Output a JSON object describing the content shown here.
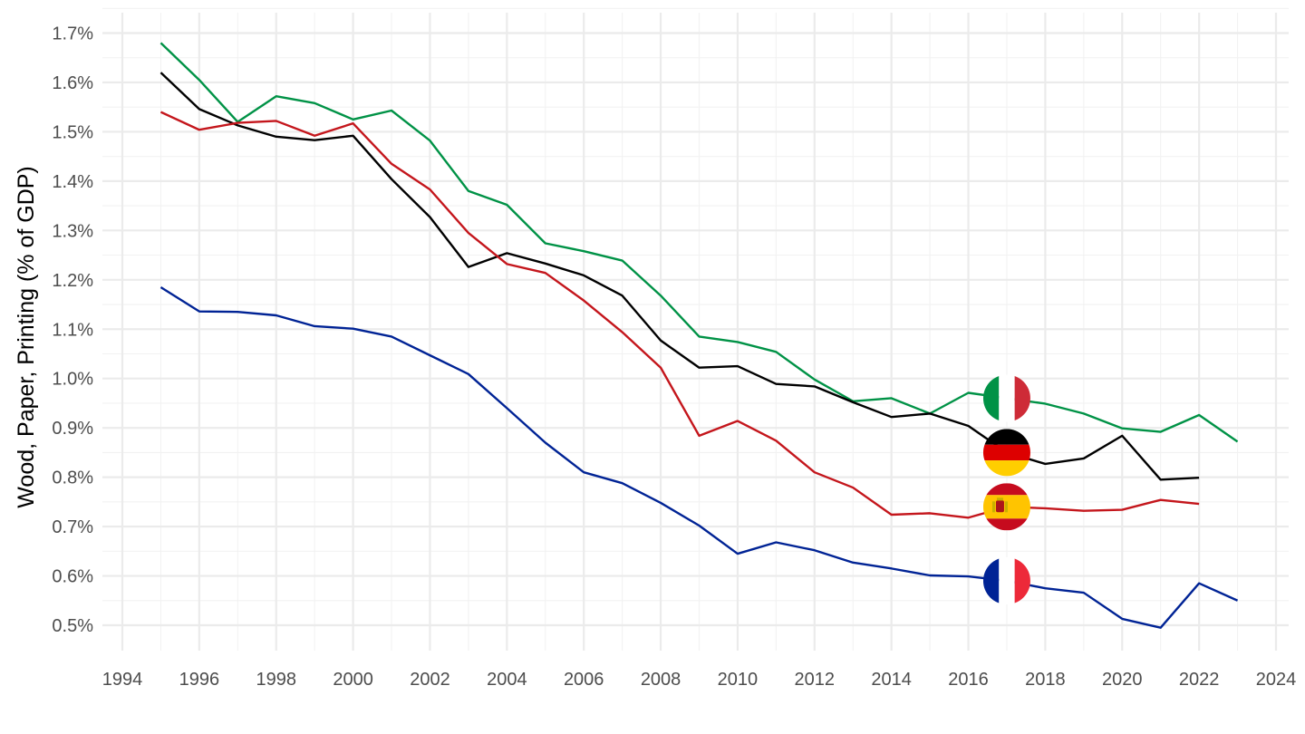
{
  "chart_data": {
    "type": "line",
    "title": "",
    "xlabel": "",
    "ylabel": "Wood, Paper, Printing (% of GDP)",
    "xlim": [
      1994,
      2024
    ],
    "ylim": [
      0.45,
      1.72
    ],
    "x_ticks": [
      "1994",
      "1996",
      "1998",
      "2000",
      "2002",
      "2004",
      "2006",
      "2008",
      "2010",
      "2012",
      "2014",
      "2016",
      "2018",
      "2020",
      "2022",
      "2024"
    ],
    "y_ticks": [
      "0.5%",
      "0.6%",
      "0.7%",
      "0.8%",
      "0.9%",
      "1.0%",
      "1.1%",
      "1.2%",
      "1.3%",
      "1.4%",
      "1.5%",
      "1.6%",
      "1.7%"
    ],
    "grid": true,
    "legend": "flag icons placed on lines at x=2017",
    "series": [
      {
        "country": "Italy",
        "flag_icon": "italy-flag-icon",
        "color": "#009246",
        "x": [
          1995,
          1996,
          1997,
          1998,
          1999,
          2000,
          2001,
          2002,
          2003,
          2004,
          2005,
          2006,
          2007,
          2008,
          2009,
          2010,
          2011,
          2012,
          2013,
          2014,
          2015,
          2016,
          2017,
          2018,
          2019,
          2020,
          2021,
          2022,
          2023
        ],
        "values": [
          1.68,
          1.605,
          1.52,
          1.572,
          1.558,
          1.525,
          1.543,
          1.482,
          1.38,
          1.352,
          1.274,
          1.258,
          1.239,
          1.168,
          1.085,
          1.074,
          1.054,
          0.998,
          0.954,
          0.96,
          0.929,
          0.971,
          0.96,
          0.949,
          0.929,
          0.899,
          0.892,
          0.926,
          0.872
        ]
      },
      {
        "country": "Germany",
        "flag_icon": "germany-flag-icon",
        "color": "#000000",
        "x": [
          1995,
          1996,
          1997,
          1998,
          1999,
          2000,
          2001,
          2002,
          2003,
          2004,
          2005,
          2006,
          2007,
          2008,
          2009,
          2010,
          2011,
          2012,
          2013,
          2014,
          2015,
          2016,
          2017,
          2018,
          2019,
          2020,
          2021,
          2022
        ],
        "values": [
          1.62,
          1.546,
          1.513,
          1.49,
          1.483,
          1.492,
          1.404,
          1.327,
          1.226,
          1.254,
          1.233,
          1.209,
          1.168,
          1.077,
          1.022,
          1.025,
          0.989,
          0.984,
          0.952,
          0.922,
          0.929,
          0.904,
          0.85,
          0.827,
          0.838,
          0.884,
          0.795,
          0.799
        ]
      },
      {
        "country": "Spain",
        "flag_icon": "spain-flag-icon",
        "color": "#c4161c",
        "x": [
          1995,
          1996,
          1997,
          1998,
          1999,
          2000,
          2001,
          2002,
          2003,
          2004,
          2005,
          2006,
          2007,
          2008,
          2009,
          2010,
          2011,
          2012,
          2013,
          2014,
          2015,
          2016,
          2017,
          2018,
          2019,
          2020,
          2021,
          2022
        ],
        "values": [
          1.54,
          1.504,
          1.518,
          1.522,
          1.492,
          1.517,
          1.435,
          1.383,
          1.295,
          1.232,
          1.214,
          1.158,
          1.094,
          1.022,
          0.884,
          0.914,
          0.874,
          0.81,
          0.779,
          0.724,
          0.727,
          0.718,
          0.74,
          0.737,
          0.732,
          0.734,
          0.754,
          0.746
        ]
      },
      {
        "country": "France",
        "flag_icon": "france-flag-icon",
        "color": "#002395",
        "x": [
          1995,
          1996,
          1997,
          1998,
          1999,
          2000,
          2001,
          2002,
          2003,
          2004,
          2005,
          2006,
          2007,
          2008,
          2009,
          2010,
          2011,
          2012,
          2013,
          2014,
          2015,
          2016,
          2017,
          2018,
          2019,
          2020,
          2021,
          2022,
          2023
        ],
        "values": [
          1.185,
          1.136,
          1.135,
          1.128,
          1.106,
          1.101,
          1.085,
          1.047,
          1.009,
          0.94,
          0.87,
          0.81,
          0.788,
          0.748,
          0.702,
          0.645,
          0.668,
          0.652,
          0.627,
          0.615,
          0.601,
          0.599,
          0.59,
          0.575,
          0.566,
          0.513,
          0.495,
          0.585,
          0.55
        ]
      }
    ]
  }
}
